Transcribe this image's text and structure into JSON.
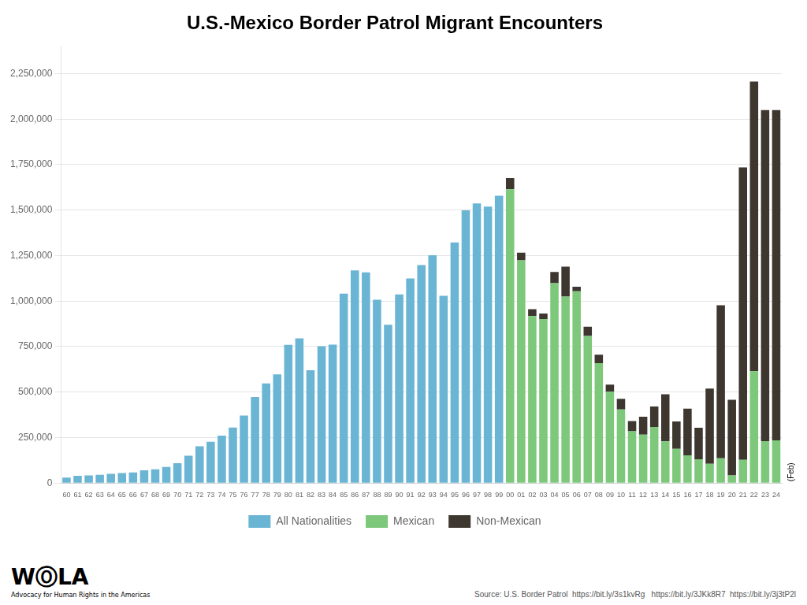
{
  "chart_data": {
    "type": "bar",
    "title": "U.S.-Mexico Border Patrol Migrant Encounters",
    "stacked": true,
    "categories": [
      "60",
      "61",
      "62",
      "63",
      "64",
      "65",
      "66",
      "67",
      "68",
      "69",
      "70",
      "71",
      "72",
      "73",
      "74",
      "75",
      "76",
      "77",
      "78",
      "79",
      "80",
      "81",
      "82",
      "83",
      "84",
      "85",
      "86",
      "87",
      "88",
      "89",
      "90",
      "91",
      "92",
      "93",
      "94",
      "95",
      "96",
      "97",
      "98",
      "99",
      "00",
      "01",
      "02",
      "03",
      "04",
      "05",
      "06",
      "07",
      "08",
      "09",
      "10",
      "11",
      "12",
      "13",
      "14",
      "15",
      "16",
      "17",
      "18",
      "19",
      "20",
      "21",
      "22",
      "23",
      "24"
    ],
    "series": [
      {
        "name": "All Nationalities",
        "color": "#6ab4d4",
        "values": [
          29651,
          39959,
          42194,
          45640,
          50174,
          55349,
          58683,
          70574,
          75559,
          89006,
          109398,
          149791,
          202027,
          226930,
          260289,
          305028,
          370961,
          472811,
          546902,
          597627,
          759351,
          795364,
          619589,
          752027,
          760552,
          1041200,
          1169116,
          1157527,
          1007086,
          869860,
          1036232,
          1124339,
          1197804,
          1251992,
          1029174,
          1322538,
          1499178,
          1536520,
          1519671,
          1579010,
          null,
          null,
          null,
          null,
          null,
          null,
          null,
          null,
          null,
          null,
          null,
          null,
          null,
          null,
          null,
          null,
          null,
          null,
          null,
          null,
          null,
          null,
          null,
          null,
          null
        ]
      },
      {
        "name": "Mexican",
        "color": "#7dc87a",
        "values": [
          null,
          null,
          null,
          null,
          null,
          null,
          null,
          null,
          null,
          null,
          null,
          null,
          null,
          null,
          null,
          null,
          null,
          null,
          null,
          null,
          null,
          null,
          null,
          null,
          null,
          null,
          null,
          null,
          null,
          null,
          null,
          null,
          null,
          null,
          null,
          null,
          null,
          null,
          null,
          null,
          1614700,
          1224267,
          917993,
          901524,
          1098399,
          1024584,
          1053792,
          808578,
          659391,
          503386,
          404365,
          284298,
          265681,
          308690,
          229178,
          188122,
          152840,
          130454,
          105727,
          136290,
          41732,
          127468,
          614010,
          230095,
          235026
        ]
      },
      {
        "name": "Non-Mexican",
        "color": "#3d3730",
        "values": [
          null,
          null,
          null,
          null,
          null,
          null,
          null,
          null,
          null,
          null,
          null,
          null,
          null,
          null,
          null,
          null,
          null,
          null,
          null,
          null,
          null,
          null,
          null,
          null,
          null,
          null,
          null,
          null,
          null,
          null,
          null,
          null,
          null,
          null,
          null,
          null,
          null,
          null,
          null,
          null,
          61738,
          41947,
          37317,
          30033,
          61248,
          164491,
          25010,
          50410,
          45636,
          37479,
          59017,
          55954,
          99087,
          112099,
          258414,
          149995,
          256030,
          173462,
          413854,
          841219,
          416356,
          1607218,
          1592426,
          1819442,
          1814511
        ]
      }
    ],
    "ylim": [
      0,
      2400000
    ],
    "yticks": [
      {
        "value": 0,
        "label": "0"
      },
      {
        "value": 250000,
        "label": "250,000"
      },
      {
        "value": 500000,
        "label": "500,000"
      },
      {
        "value": 750000,
        "label": "750,000"
      },
      {
        "value": 1000000,
        "label": "1,000,000"
      },
      {
        "value": 1250000,
        "label": "1,250,000"
      },
      {
        "value": 1500000,
        "label": "1,500,000"
      },
      {
        "value": 1750000,
        "label": "1,750,000"
      },
      {
        "value": 2000000,
        "label": "2,000,000"
      },
      {
        "value": 2250000,
        "label": "2,250,000"
      }
    ],
    "grid": true,
    "legend": "bottom",
    "annotations": [
      "(Feb)",
      "WⓄLA",
      "Advocacy for Human Rights in the Americas",
      "Source: U.S. Border Patrol  https://bit.ly/3s1kvRg   https://bit.ly/3JKk8R7  https://bit.ly/3j3tP2l"
    ]
  }
}
